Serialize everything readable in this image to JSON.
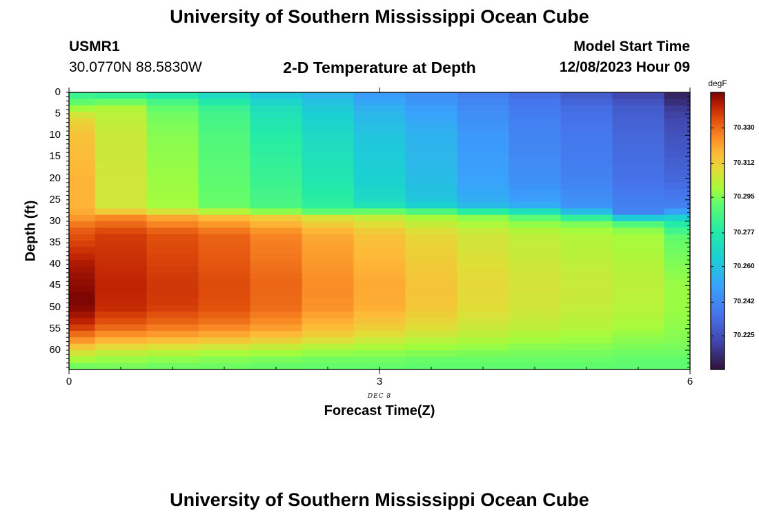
{
  "header": {
    "title": "University of Southern Mississippi Ocean Cube",
    "station_id": "USMR1",
    "coordinates": "30.0770N  88.5830W",
    "chart_title": "2-D Temperature at Depth",
    "start_label": "Model Start Time",
    "start_time": "12/08/2023 Hour 09"
  },
  "footer": {
    "title": "University of Southern Mississippi Ocean Cube"
  },
  "chart_data": {
    "type": "heatmap",
    "title": "2-D Temperature at Depth",
    "xlabel": "Forecast Time(Z)",
    "x_sublabel": "DEC 8",
    "ylabel": "Depth (ft)",
    "units": "degF",
    "xlim": [
      0,
      6
    ],
    "ylim": [
      0,
      64.5
    ],
    "x_ticks": [
      "0",
      "3",
      "6"
    ],
    "y_ticks": [
      "0",
      "5",
      "10",
      "15",
      "20",
      "25",
      "30",
      "35",
      "40",
      "45",
      "50",
      "55",
      "60"
    ],
    "colorbar_ticks": [
      "70.330",
      "70.312",
      "70.295",
      "70.277",
      "70.260",
      "70.242",
      "70.225"
    ],
    "colorbar_range": [
      70.208,
      70.348
    ],
    "time_columns": [
      0,
      0.5,
      1,
      1.5,
      2,
      2.5,
      3,
      3.5,
      4,
      4.5,
      5,
      5.5,
      6
    ],
    "profiles": [
      {
        "time": 0.0,
        "depth_ft": [
          0,
          2,
          4,
          6,
          10,
          20,
          27,
          29,
          32,
          40,
          48,
          50,
          54,
          58,
          60,
          62,
          64
        ],
        "temp_degF": [
          70.28,
          70.29,
          70.3,
          70.31,
          70.315,
          70.318,
          70.318,
          70.322,
          70.332,
          70.343,
          70.348,
          70.347,
          70.34,
          70.322,
          70.31,
          70.3,
          70.293
        ]
      },
      {
        "time": 0.5,
        "depth_ft": [
          0,
          2,
          4,
          10,
          20,
          27,
          29,
          33,
          45,
          50,
          54,
          57,
          60,
          62,
          64
        ],
        "temp_degF": [
          70.276,
          70.292,
          70.302,
          70.305,
          70.306,
          70.306,
          70.325,
          70.337,
          70.341,
          70.34,
          70.333,
          70.322,
          70.306,
          70.298,
          70.294
        ]
      },
      {
        "time": 1.0,
        "depth_ft": [
          0,
          2,
          4,
          10,
          20,
          27,
          29,
          33,
          45,
          50,
          54,
          57,
          60,
          62,
          64
        ],
        "temp_degF": [
          70.272,
          70.285,
          70.293,
          70.296,
          70.298,
          70.299,
          70.32,
          70.334,
          70.338,
          70.337,
          70.33,
          70.32,
          70.304,
          70.297,
          70.293
        ]
      },
      {
        "time": 1.5,
        "depth_ft": [
          0,
          2,
          4,
          10,
          20,
          27,
          29,
          33,
          45,
          50,
          54,
          57,
          60,
          62,
          64
        ],
        "temp_degF": [
          70.266,
          70.276,
          70.284,
          70.288,
          70.291,
          70.293,
          70.316,
          70.331,
          70.335,
          70.334,
          70.328,
          70.318,
          70.302,
          70.296,
          70.293
        ]
      },
      {
        "time": 2.0,
        "depth_ft": [
          0,
          2,
          4,
          10,
          20,
          27,
          29,
          33,
          45,
          50,
          54,
          57,
          60,
          62,
          64
        ],
        "temp_degF": [
          70.26,
          70.266,
          70.272,
          70.278,
          70.283,
          70.287,
          70.312,
          70.326,
          70.331,
          70.33,
          70.324,
          70.315,
          70.301,
          70.295,
          70.292
        ]
      },
      {
        "time": 2.5,
        "depth_ft": [
          0,
          2,
          4,
          10,
          20,
          27,
          29,
          33,
          45,
          50,
          54,
          57,
          60,
          62,
          64
        ],
        "temp_degF": [
          70.255,
          70.259,
          70.263,
          70.269,
          70.275,
          70.281,
          70.307,
          70.32,
          70.325,
          70.324,
          70.318,
          70.311,
          70.299,
          70.294,
          70.292
        ]
      },
      {
        "time": 3.0,
        "depth_ft": [
          0,
          2,
          4,
          10,
          20,
          26,
          28.5,
          33,
          45,
          50,
          54,
          57,
          60,
          62,
          64
        ],
        "temp_degF": [
          70.247,
          70.251,
          70.255,
          70.261,
          70.265,
          70.27,
          70.302,
          70.315,
          70.32,
          70.319,
          70.314,
          70.307,
          70.298,
          70.294,
          70.292
        ]
      },
      {
        "time": 3.5,
        "depth_ft": [
          0,
          2,
          4,
          10,
          20,
          26,
          28.5,
          33,
          45,
          50,
          54,
          57,
          60,
          62,
          64
        ],
        "temp_degF": [
          70.243,
          70.246,
          70.249,
          70.255,
          70.258,
          70.262,
          70.298,
          70.31,
          70.315,
          70.314,
          70.31,
          70.304,
          70.297,
          70.293,
          70.291
        ]
      },
      {
        "time": 4.0,
        "depth_ft": [
          0,
          2,
          4,
          10,
          20,
          26,
          29,
          33,
          45,
          50,
          54,
          57,
          60,
          62,
          64
        ],
        "temp_degF": [
          70.239,
          70.241,
          70.243,
          70.247,
          70.25,
          70.254,
          70.296,
          70.306,
          70.31,
          70.309,
          70.306,
          70.302,
          70.296,
          70.293,
          70.291
        ]
      },
      {
        "time": 4.5,
        "depth_ft": [
          0,
          2,
          4,
          10,
          20,
          26,
          29.5,
          33,
          45,
          50,
          54,
          57,
          60,
          62,
          64
        ],
        "temp_degF": [
          70.233,
          70.236,
          70.238,
          70.241,
          70.244,
          70.25,
          70.294,
          70.303,
          70.307,
          70.306,
          70.304,
          70.3,
          70.295,
          70.293,
          70.291
        ]
      },
      {
        "time": 5.0,
        "depth_ft": [
          0,
          2,
          4,
          10,
          20,
          27,
          30,
          33,
          45,
          50,
          54,
          57,
          60,
          62,
          64
        ],
        "temp_degF": [
          70.228,
          70.231,
          70.234,
          70.237,
          70.24,
          70.246,
          70.293,
          70.301,
          70.305,
          70.304,
          70.302,
          70.299,
          70.295,
          70.293,
          70.291
        ]
      },
      {
        "time": 5.5,
        "depth_ft": [
          0,
          2,
          4,
          10,
          20,
          28,
          31,
          33,
          45,
          50,
          54,
          57,
          60,
          62,
          64
        ],
        "temp_degF": [
          70.221,
          70.226,
          70.229,
          70.232,
          70.235,
          70.241,
          70.293,
          70.299,
          70.303,
          70.302,
          70.3,
          70.297,
          70.294,
          70.292,
          70.291
        ]
      },
      {
        "time": 6.0,
        "depth_ft": [
          0,
          2,
          4,
          10,
          20,
          27,
          30,
          34,
          45,
          50,
          54,
          57,
          60,
          62,
          64
        ],
        "temp_degF": [
          70.212,
          70.215,
          70.22,
          70.226,
          70.232,
          70.24,
          70.275,
          70.292,
          70.298,
          70.298,
          70.297,
          70.296,
          70.294,
          70.292,
          70.291
        ]
      }
    ]
  }
}
